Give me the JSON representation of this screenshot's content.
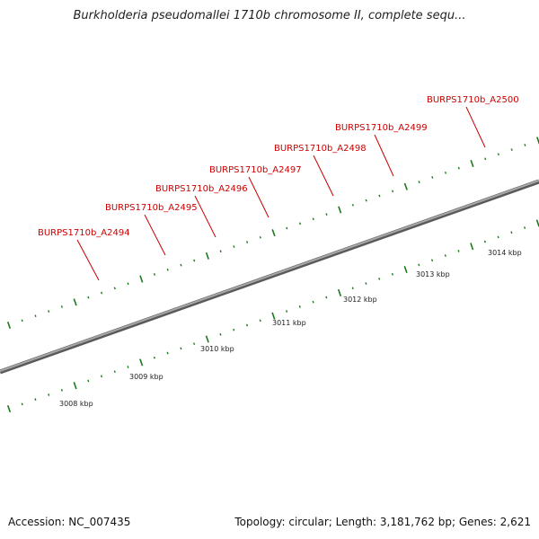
{
  "title": "Burkholderia pseudomallei 1710b chromosome II, complete sequ...",
  "footer": {
    "accession": "Accession: NC_007435",
    "summary": "Topology: circular; Length: 3,181,762 bp; Genes: 2,621"
  },
  "gene_labels": [
    "BURPS1710b_A2494",
    "BURPS1710b_A2495",
    "BURPS1710b_A2496",
    "BURPS1710b_A2497",
    "BURPS1710b_A2498",
    "BURPS1710b_A2499",
    "BURPS1710b_A2500"
  ],
  "scale_labels": [
    "3008 kbp",
    "3009 kbp",
    "3010 kbp",
    "3011 kbp",
    "3012 kbp",
    "3013 kbp",
    "3014 kbp"
  ],
  "colors": {
    "cds": "#ff0000",
    "cds_dark": "#c00000",
    "highlight_gene": "#ff8c00",
    "blue_feature": "#0000ee",
    "steel_feature": "#4682b4",
    "navy_feature": "#3a3a8c",
    "grey_feature": "#b0b0b0",
    "backbone": "#808080",
    "tick": "#1a7a1a",
    "label": "#cc0000"
  }
}
